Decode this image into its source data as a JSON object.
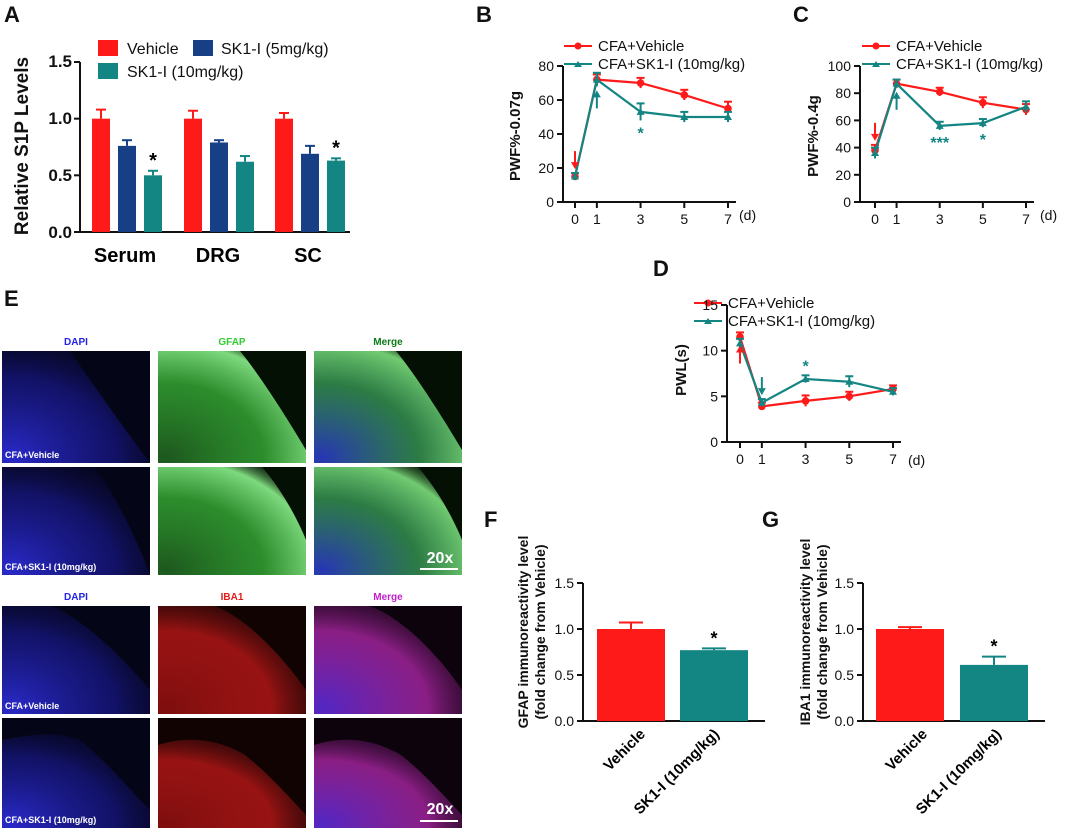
{
  "colors": {
    "vehicle": "#ff1a1a",
    "sk5": "#163f86",
    "sk10": "#138583",
    "axis": "#111111",
    "dapi": "#2323e6",
    "gfap": "#33cc33",
    "merge_green": "#0b7a18",
    "iba1": "#e11b1b",
    "merge_magenta": "#c21fc9"
  },
  "chart_data": [
    {
      "panel": "A",
      "type": "bar",
      "ylabel": "Relative S1P Levels",
      "ylim": [
        0,
        1.5
      ],
      "yticks": [
        "0.0",
        "0.5",
        "1.0",
        "1.5"
      ],
      "categories": [
        "Serum",
        "DRG",
        "SC"
      ],
      "series": [
        {
          "name": "Vehicle",
          "values": [
            1.0,
            1.0,
            1.0
          ],
          "errors": [
            0.08,
            0.07,
            0.05
          ]
        },
        {
          "name": "SK1-I (5mg/kg)",
          "values": [
            0.76,
            0.79,
            0.69
          ],
          "errors": [
            0.05,
            0.02,
            0.07
          ]
        },
        {
          "name": "SK1-I (10mg/kg)",
          "values": [
            0.5,
            0.62,
            0.63
          ],
          "errors": [
            0.04,
            0.05,
            0.02
          ]
        }
      ],
      "annotations": [
        {
          "category": "Serum",
          "series": 2,
          "text": "*"
        },
        {
          "category": "SC",
          "series": 2,
          "text": "*"
        }
      ]
    },
    {
      "panel": "B",
      "type": "line",
      "ylabel": "PWF%-0.07g",
      "xunit": "(d)",
      "x": [
        0,
        1,
        3,
        5,
        7
      ],
      "ylim": [
        0,
        80
      ],
      "yticks": [
        "0",
        "20",
        "40",
        "60",
        "80"
      ],
      "series": [
        {
          "name": "CFA+Vehicle",
          "values": [
            15,
            72,
            70,
            63,
            55
          ],
          "errors": [
            2,
            3,
            3,
            3,
            4
          ]
        },
        {
          "name": "CFA+SK1-I (10mg/kg)",
          "values": [
            15,
            72,
            53,
            50,
            50
          ],
          "errors": [
            2,
            4,
            5,
            3,
            3
          ]
        }
      ],
      "annotations": [
        {
          "x": 3,
          "series": 1,
          "text": "*"
        }
      ],
      "arrows": [
        {
          "x": 0,
          "series": 0
        },
        {
          "x": 1,
          "series": 1
        }
      ]
    },
    {
      "panel": "C",
      "type": "line",
      "ylabel": "PWF%-0.4g",
      "xunit": "(d)",
      "x": [
        0,
        1,
        3,
        5,
        7
      ],
      "ylim": [
        0,
        100
      ],
      "yticks": [
        "0",
        "20",
        "40",
        "60",
        "80",
        "100"
      ],
      "series": [
        {
          "name": "CFA+Vehicle",
          "values": [
            38,
            87,
            81,
            73,
            68
          ],
          "errors": [
            4,
            3,
            3,
            4,
            4
          ]
        },
        {
          "name": "CFA+SK1-I (10mg/kg)",
          "values": [
            36,
            87,
            56,
            58,
            70
          ],
          "errors": [
            4,
            3,
            3,
            3,
            4
          ]
        }
      ],
      "annotations": [
        {
          "x": 3,
          "series": 1,
          "text": "***"
        },
        {
          "x": 5,
          "series": 1,
          "text": "*"
        }
      ],
      "arrows": [
        {
          "x": 0,
          "series": 0
        },
        {
          "x": 1,
          "series": 1
        }
      ]
    },
    {
      "panel": "D",
      "type": "line",
      "ylabel": "PWL(s)",
      "xunit": "(d)",
      "x": [
        0,
        1,
        3,
        5,
        7
      ],
      "ylim": [
        0,
        15
      ],
      "yticks": [
        "0",
        "5",
        "10",
        "15"
      ],
      "series": [
        {
          "name": "CFA+Vehicle",
          "values": [
            11.5,
            3.9,
            4.5,
            5.0,
            5.8
          ],
          "errors": [
            0.5,
            0.4,
            0.6,
            0.5,
            0.4
          ]
        },
        {
          "name": "CFA+SK1-I (10mg/kg)",
          "values": [
            10.8,
            4.3,
            6.9,
            6.6,
            5.5
          ],
          "errors": [
            0.5,
            0.4,
            0.4,
            0.6,
            0.4
          ]
        }
      ],
      "annotations": [
        {
          "x": 3,
          "series": 1,
          "text": "*"
        }
      ],
      "arrows": [
        {
          "x": 0,
          "series": 0
        },
        {
          "x": 1,
          "series": 1
        }
      ]
    },
    {
      "panel": "F",
      "type": "bar",
      "ylabel_lines": [
        "GFAP immunoreactivity level",
        "(fold change from Vehicle)"
      ],
      "ylim": [
        0,
        1.5
      ],
      "yticks": [
        "0.0",
        "0.5",
        "1.0",
        "1.5"
      ],
      "categories": [
        "Vehicle",
        "SK1-I (10mg/kg)"
      ],
      "values": [
        1.0,
        0.77
      ],
      "errors": [
        0.07,
        0.02
      ],
      "annotations": [
        {
          "category": 1,
          "text": "*"
        }
      ]
    },
    {
      "panel": "G",
      "type": "bar",
      "ylabel_lines": [
        "IBA1 immunoreactivity level",
        "(fold change from Vehicle)"
      ],
      "ylim": [
        0,
        1.5
      ],
      "yticks": [
        "0.0",
        "0.5",
        "1.0",
        "1.5"
      ],
      "categories": [
        "Vehicle",
        "SK1-I (10mg/kg)"
      ],
      "values": [
        1.0,
        0.61
      ],
      "errors": [
        0.02,
        0.09
      ],
      "annotations": [
        {
          "category": 1,
          "text": "*"
        }
      ]
    }
  ],
  "panel_e": {
    "label": "E",
    "top": {
      "headers": [
        "DAPI",
        "GFAP",
        "Merge"
      ],
      "rows": [
        "CFA+Vehicle",
        "CFA+SK1-I (10mg/kg)"
      ],
      "scale": "20x"
    },
    "bottom": {
      "headers": [
        "DAPI",
        "IBA1",
        "Merge"
      ],
      "rows": [
        "CFA+Vehicle",
        "CFA+SK1-I (10mg/kg)"
      ],
      "scale": "20x"
    }
  }
}
